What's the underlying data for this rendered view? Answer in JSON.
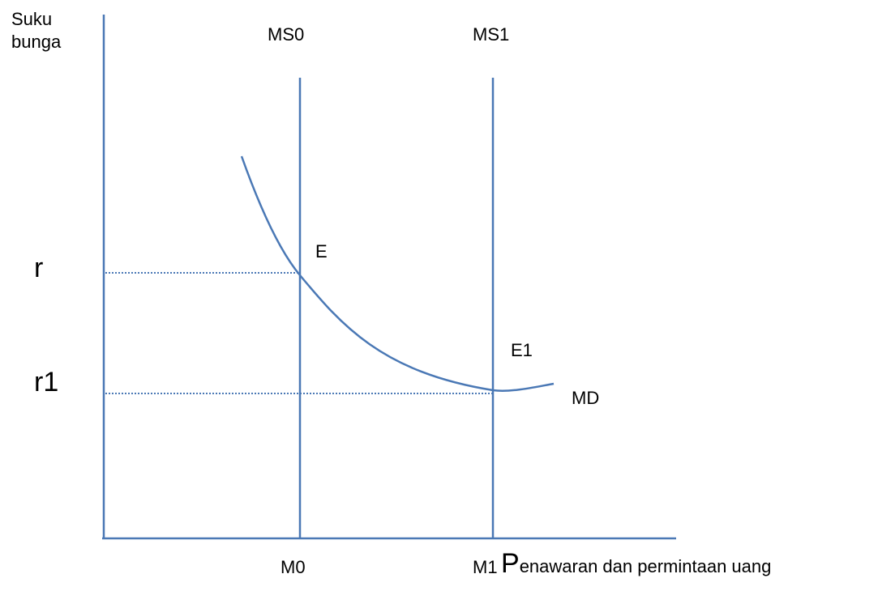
{
  "axes": {
    "y_label_line1": "Suku",
    "y_label_line2": "bunga",
    "x_label_initial": "P",
    "x_label_rest": "enawaran dan permintaan uang"
  },
  "supply_curves": [
    {
      "label": "MS0",
      "x_label": "M0"
    },
    {
      "label": "MS1",
      "x_label": "M1"
    }
  ],
  "demand_curve": {
    "label": "MD"
  },
  "equilibria": [
    {
      "label": "E",
      "rate_label": "r"
    },
    {
      "label": "E1",
      "rate_label": "r1"
    }
  ],
  "colors": {
    "curve": "#4a78b5",
    "axis": "#4a78b5",
    "text": "#000000"
  }
}
